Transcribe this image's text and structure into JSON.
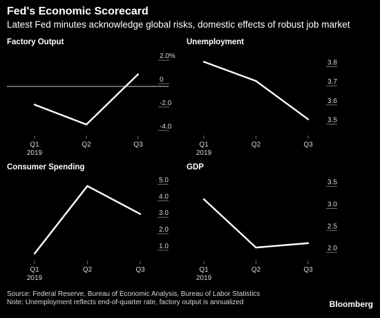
{
  "title": "Fed's Economic Scorecard",
  "subtitle": "Latest Fed minutes acknowledge global risks, domestic effects of robust job market",
  "source": "Source: Federal Reserve, Bureau of Economic Analysis, Bureau of Labor Statistics",
  "note": "Note: Unemployment reflects end-of-quarter rate, factory output is annualized",
  "brand": "Bloomberg",
  "colors": {
    "background": "#000000",
    "line": "#ffffff",
    "text": "#d9d9d9"
  },
  "chart_data": [
    {
      "type": "line",
      "title": "Factory Output",
      "categories": [
        "Q1",
        "Q2",
        "Q3"
      ],
      "year_label": "2019",
      "values": [
        -2.2,
        -3.9,
        0.4
      ],
      "yticks": [
        "2.0%",
        "0",
        "-2.0",
        "-4.0"
      ],
      "ytick_values": [
        2.0,
        0,
        -2.0,
        -4.0
      ],
      "ylim": [
        -4.6,
        2.6
      ],
      "zero_line": true
    },
    {
      "type": "line",
      "title": "Unemployment",
      "categories": [
        "Q1",
        "Q2",
        "Q3"
      ],
      "year_label": "2019",
      "values": [
        3.8,
        3.7,
        3.5
      ],
      "yticks": [
        "3.8",
        "3.7",
        "3.6",
        "3.5"
      ],
      "ytick_values": [
        3.8,
        3.7,
        3.6,
        3.5
      ],
      "ylim": [
        3.43,
        3.87
      ]
    },
    {
      "type": "line",
      "title": "Consumer Spending",
      "categories": [
        "Q1",
        "Q2",
        "Q3"
      ],
      "year_label": "2019",
      "values": [
        0.5,
        4.6,
        2.9
      ],
      "yticks": [
        "5.0",
        "4.0",
        "3.0",
        "2.0",
        "1.0"
      ],
      "ytick_values": [
        5.0,
        4.0,
        3.0,
        2.0,
        1.0
      ],
      "ylim": [
        0.2,
        5.4
      ]
    },
    {
      "type": "line",
      "title": "GDP",
      "categories": [
        "Q1",
        "Q2",
        "Q3"
      ],
      "year_label": "2019",
      "values": [
        3.1,
        2.0,
        2.1
      ],
      "yticks": [
        "3.5",
        "3.0",
        "2.5",
        "2.0"
      ],
      "ytick_values": [
        3.5,
        3.0,
        2.5,
        2.0
      ],
      "ylim": [
        1.75,
        3.7
      ]
    }
  ]
}
